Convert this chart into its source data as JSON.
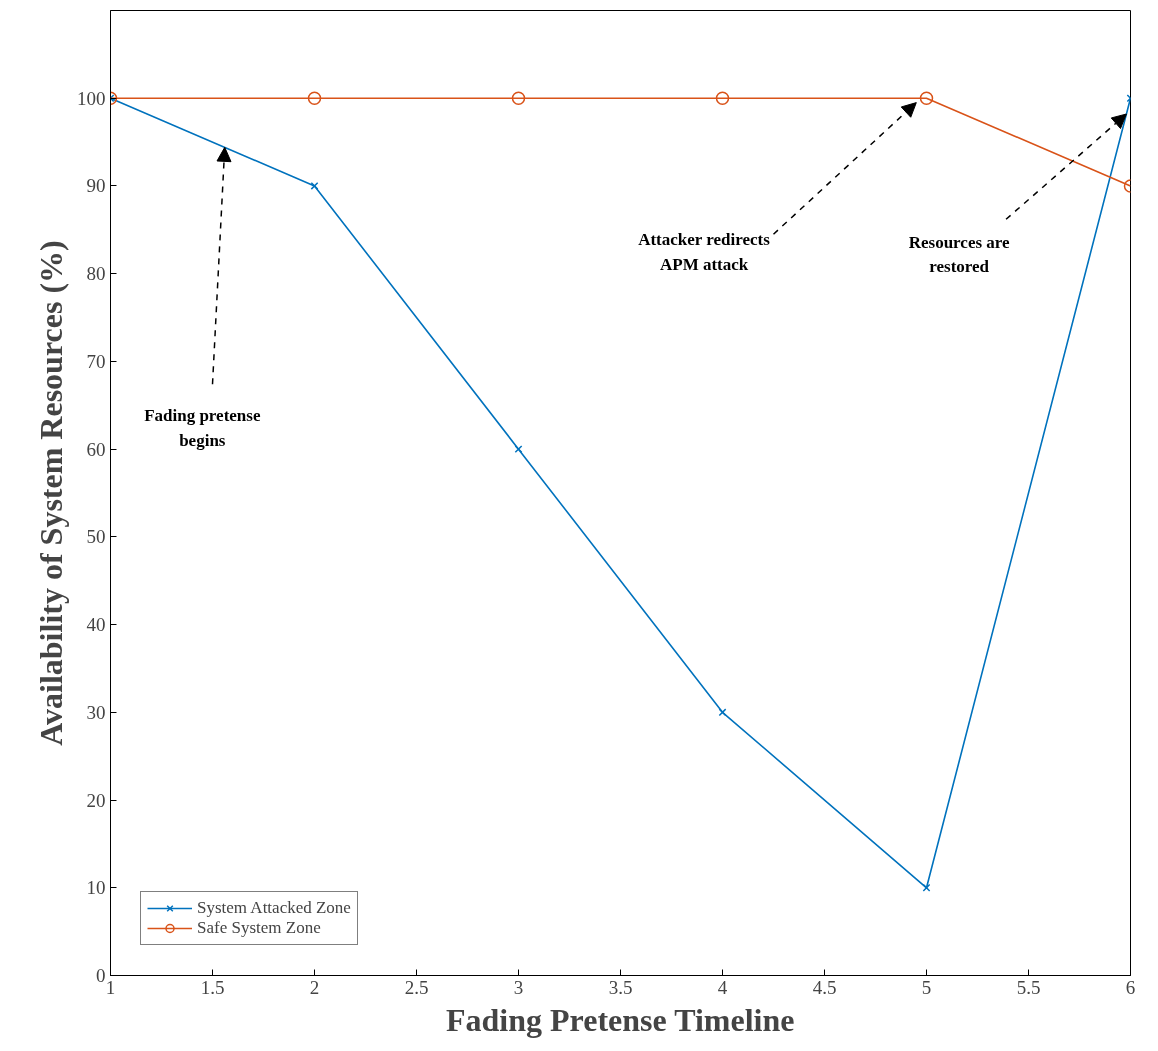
{
  "chart_data": {
    "type": "line",
    "xlabel": "Fading Pretense Timeline",
    "ylabel": "Availability of System Resources (%)",
    "x": [
      1,
      2,
      3,
      4,
      5,
      6
    ],
    "series": [
      {
        "name": "System Attacked Zone",
        "color": "#0072bd",
        "marker": "cross",
        "values": [
          100,
          90,
          60,
          30,
          10,
          100
        ]
      },
      {
        "name": "Safe System Zone",
        "color": "#d95319",
        "marker": "circle",
        "values": [
          100,
          100,
          100,
          100,
          100,
          90
        ]
      }
    ],
    "xlim": [
      1,
      6
    ],
    "ylim": [
      0,
      110
    ],
    "xticks": [
      1,
      1.5,
      2,
      2.5,
      3,
      3.5,
      4,
      4.5,
      5,
      5.5,
      6
    ],
    "yticks": [
      0,
      10,
      20,
      30,
      40,
      50,
      60,
      70,
      80,
      90,
      100
    ],
    "grid": false,
    "legend": "bottom left",
    "line_style": "solid",
    "annotations": [
      {
        "text": "Fading pretense\nbegins",
        "x": 1.56,
        "y": 94.4
      },
      {
        "text": "Attacker redirects\nAPM attack",
        "x": 4.95,
        "y": 99.5
      },
      {
        "text": "Resources are\nrestored",
        "x": 5.98,
        "y": 98.2
      }
    ]
  }
}
